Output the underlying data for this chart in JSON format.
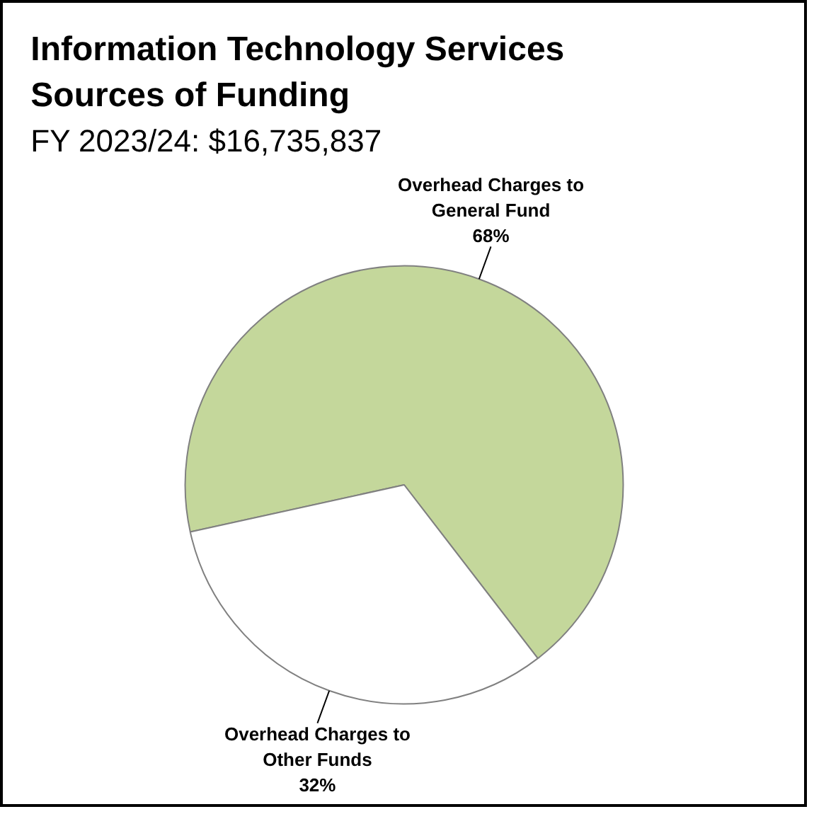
{
  "chart_data": {
    "type": "pie",
    "title": "Information Technology Services Sources of Funding",
    "subtitle": "FY 2023/24: $16,735,837",
    "categories": [
      "Overhead Charges to General Fund",
      "Overhead Charges to Other Funds"
    ],
    "values": [
      68,
      32
    ],
    "colors": [
      "#c4d79b",
      "#ffffff"
    ],
    "value_labels": [
      "68%",
      "32%"
    ],
    "legend": false
  }
}
